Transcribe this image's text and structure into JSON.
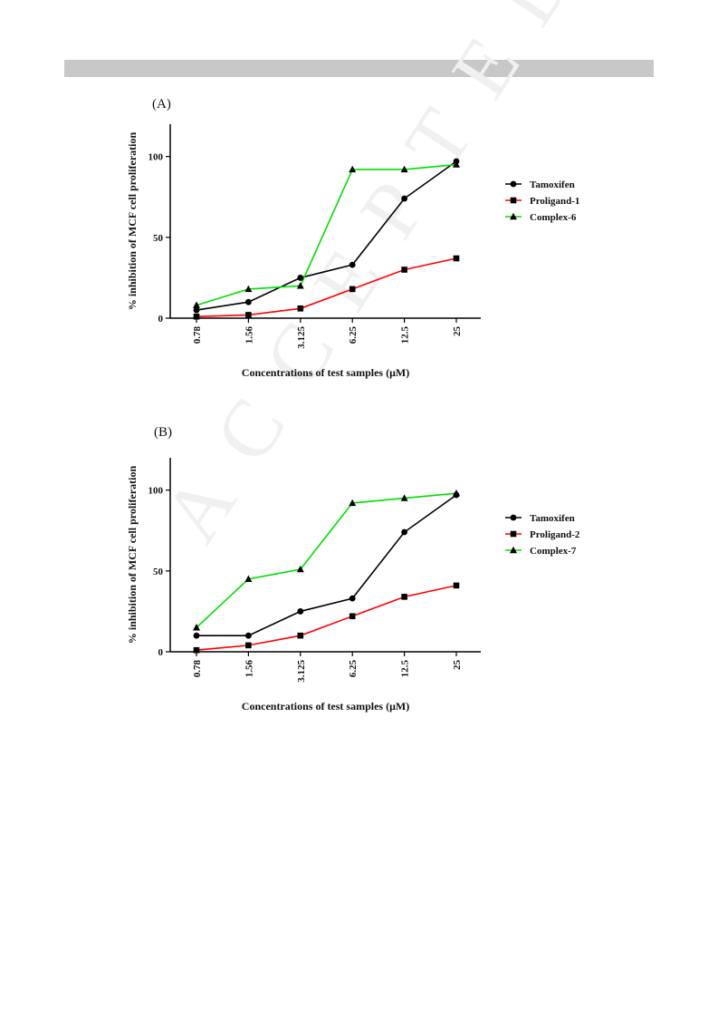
{
  "header": {
    "color": "#c8c8c8"
  },
  "watermark": {
    "text": "ACCEPTED MANUSCRIPT"
  },
  "chart_data": [
    {
      "panel_label": "(A)",
      "type": "line",
      "categories": [
        "0.78",
        "1.56",
        "3.125",
        "6.25",
        "12.5",
        "25"
      ],
      "xlabel": "Concentrations of test samples (μM)",
      "ylabel": "% inhibition of MCF cell proliferation",
      "yticks": [
        "0",
        "50",
        "100"
      ],
      "ylim": [
        0,
        120
      ],
      "grid": false,
      "legend": "right",
      "series": [
        {
          "name": "Tamoxifen",
          "color": "#000000",
          "marker": "circle",
          "values": [
            5,
            10,
            25,
            33,
            74,
            97
          ]
        },
        {
          "name": "Proligand-1",
          "color": "#ff0000",
          "marker": "square",
          "values": [
            1,
            2,
            6,
            18,
            30,
            37
          ]
        },
        {
          "name": "Complex-6",
          "color": "#00e000",
          "marker": "triangle",
          "values": [
            8,
            18,
            20,
            92,
            92,
            95
          ]
        }
      ]
    },
    {
      "panel_label": "(B)",
      "type": "line",
      "categories": [
        "0.78",
        "1.56",
        "3.125",
        "6.25",
        "12.5",
        "25"
      ],
      "xlabel": "Concentrations of test samples (μM)",
      "ylabel": "% inhibition of MCF cell proliferation",
      "yticks": [
        "0",
        "50",
        "100"
      ],
      "ylim": [
        0,
        120
      ],
      "grid": false,
      "legend": "right",
      "series": [
        {
          "name": "Tamoxifen",
          "color": "#000000",
          "marker": "circle",
          "values": [
            10,
            10,
            25,
            33,
            74,
            97
          ]
        },
        {
          "name": "Proligand-2",
          "color": "#ff0000",
          "marker": "square",
          "values": [
            1,
            4,
            10,
            22,
            34,
            41
          ]
        },
        {
          "name": "Complex-7",
          "color": "#00e000",
          "marker": "triangle",
          "values": [
            15,
            45,
            51,
            92,
            95,
            98
          ]
        }
      ]
    }
  ]
}
